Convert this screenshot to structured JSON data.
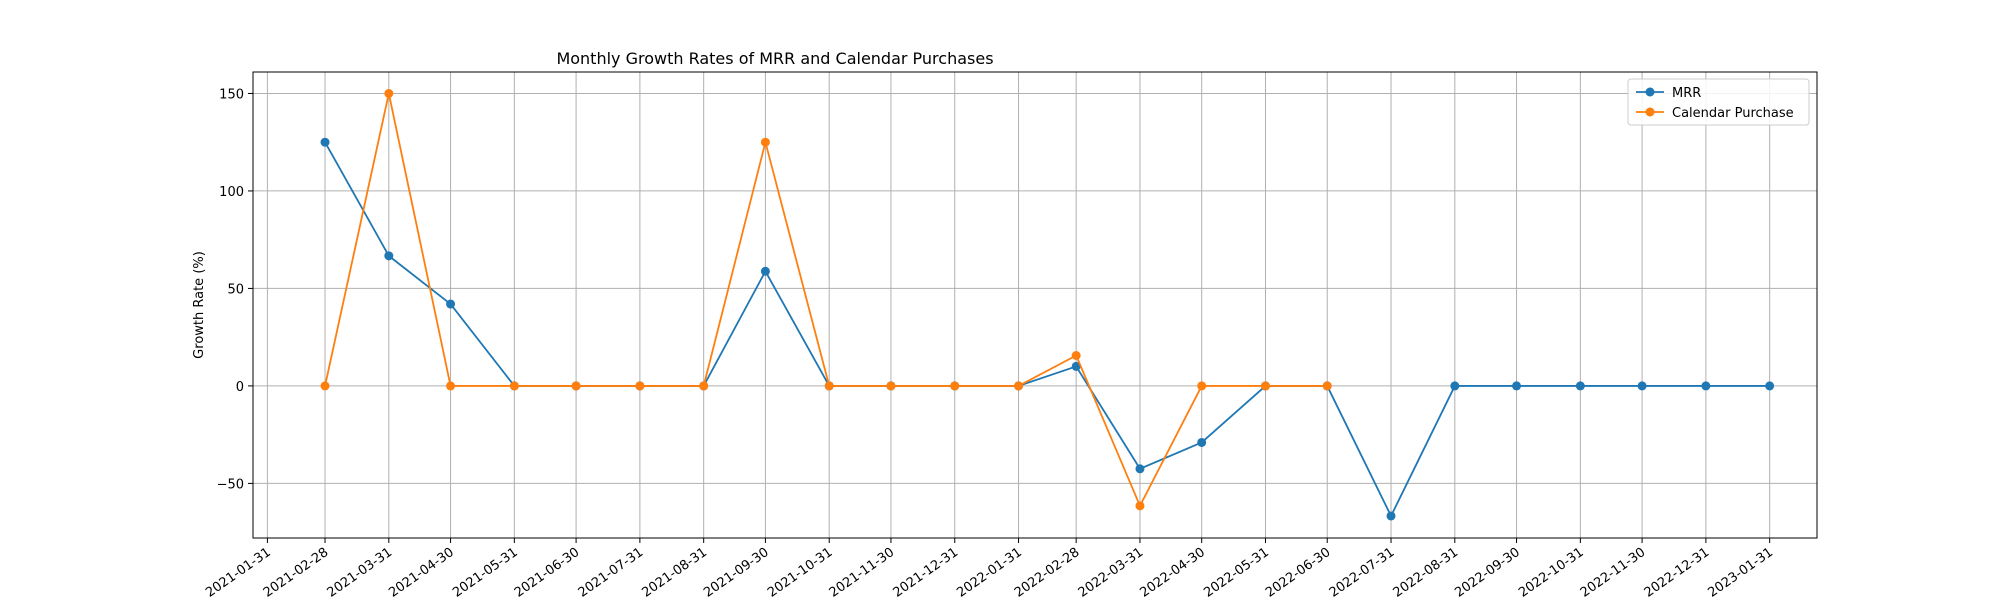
{
  "chart_data": {
    "type": "line",
    "title": "Monthly Growth Rates of MRR and Calendar Purchases",
    "xlabel": "",
    "ylabel": "Growth Rate (%)",
    "x_tick_labels": [
      "2021-01-31",
      "2021-02-28",
      "2021-03-31",
      "2021-04-30",
      "2021-05-31",
      "2021-06-30",
      "2021-07-31",
      "2021-08-31",
      "2021-09-30",
      "2021-10-31",
      "2021-11-30",
      "2021-12-31",
      "2022-01-31",
      "2022-02-28",
      "2022-03-31",
      "2022-04-30",
      "2022-05-31",
      "2022-06-30",
      "2022-07-31",
      "2022-08-31",
      "2022-09-30",
      "2022-10-31",
      "2022-11-30",
      "2022-12-31",
      "2023-01-31"
    ],
    "y_ticks": [
      -50,
      0,
      50,
      100,
      150
    ],
    "ylim": [
      -78,
      161
    ],
    "xlim": [
      "2021-01-24",
      "2023-02-23"
    ],
    "grid": true,
    "legend_position": "top-right",
    "colors": {
      "MRR": "#1f77b4",
      "Calendar Purchase": "#ff7f0e"
    },
    "series": [
      {
        "name": "MRR",
        "x": [
          "2021-02-28",
          "2021-03-31",
          "2021-04-30",
          "2021-05-31",
          "2021-06-30",
          "2021-07-31",
          "2021-08-31",
          "2021-09-30",
          "2021-10-31",
          "2021-11-30",
          "2021-12-31",
          "2022-01-31",
          "2022-02-28",
          "2022-03-31",
          "2022-04-30",
          "2022-05-31",
          "2022-06-30",
          "2022-07-31",
          "2022-08-31",
          "2022-09-30",
          "2022-10-31",
          "2022-11-30",
          "2022-12-31",
          "2023-01-31"
        ],
        "values": [
          125,
          66.7,
          42,
          0,
          0,
          0,
          0,
          58.8,
          0,
          0,
          0,
          0,
          10,
          -42.5,
          -29,
          0,
          0,
          -66.7,
          0,
          0,
          0,
          0,
          0,
          0
        ]
      },
      {
        "name": "Calendar Purchase",
        "x": [
          "2021-02-28",
          "2021-03-31",
          "2021-04-30",
          "2021-05-31",
          "2021-06-30",
          "2021-07-31",
          "2021-08-31",
          "2021-09-30",
          "2021-10-31",
          "2021-11-30",
          "2021-12-31",
          "2022-01-31",
          "2022-02-28",
          "2022-03-31",
          "2022-04-30",
          "2022-05-31",
          "2022-06-30"
        ],
        "values": [
          0,
          150,
          0,
          0,
          0,
          0,
          0,
          125,
          0,
          0,
          0,
          0,
          15.6,
          -61.5,
          0,
          0,
          0
        ]
      }
    ]
  }
}
